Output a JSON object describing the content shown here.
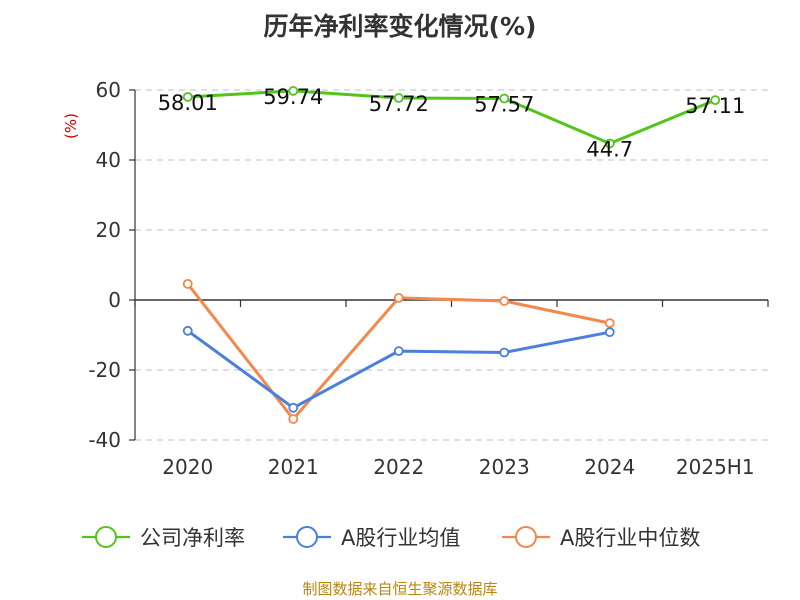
{
  "chart_data": {
    "type": "line",
    "title": "历年净利率变化情况(%)",
    "ylabel": "(%)",
    "categories": [
      "2020",
      "2021",
      "2022",
      "2023",
      "2024",
      "2025H1"
    ],
    "yticks": [
      "60",
      "40",
      "20",
      "0",
      "-20",
      "-40"
    ],
    "ylim": [
      -40,
      60
    ],
    "grid": true,
    "legend_position": "bottom",
    "series": [
      {
        "name": "公司净利率",
        "color": "#52c41a",
        "values": [
          58.01,
          59.74,
          57.72,
          57.57,
          44.7,
          57.11
        ],
        "labels": [
          "58.01",
          "59.74",
          "57.72",
          "57.57",
          "44.7",
          "57.11"
        ]
      },
      {
        "name": "A股行业均值",
        "color": "#4a7fdc",
        "values": [
          -8.8,
          -30.8,
          -14.6,
          -15.0,
          -9.2,
          null
        ]
      },
      {
        "name": "A股行业中位数",
        "color": "#f4874b",
        "values": [
          4.6,
          -34.0,
          0.6,
          -0.3,
          -6.6,
          null
        ]
      }
    ]
  },
  "source": "制图数据来自恒生聚源数据库"
}
